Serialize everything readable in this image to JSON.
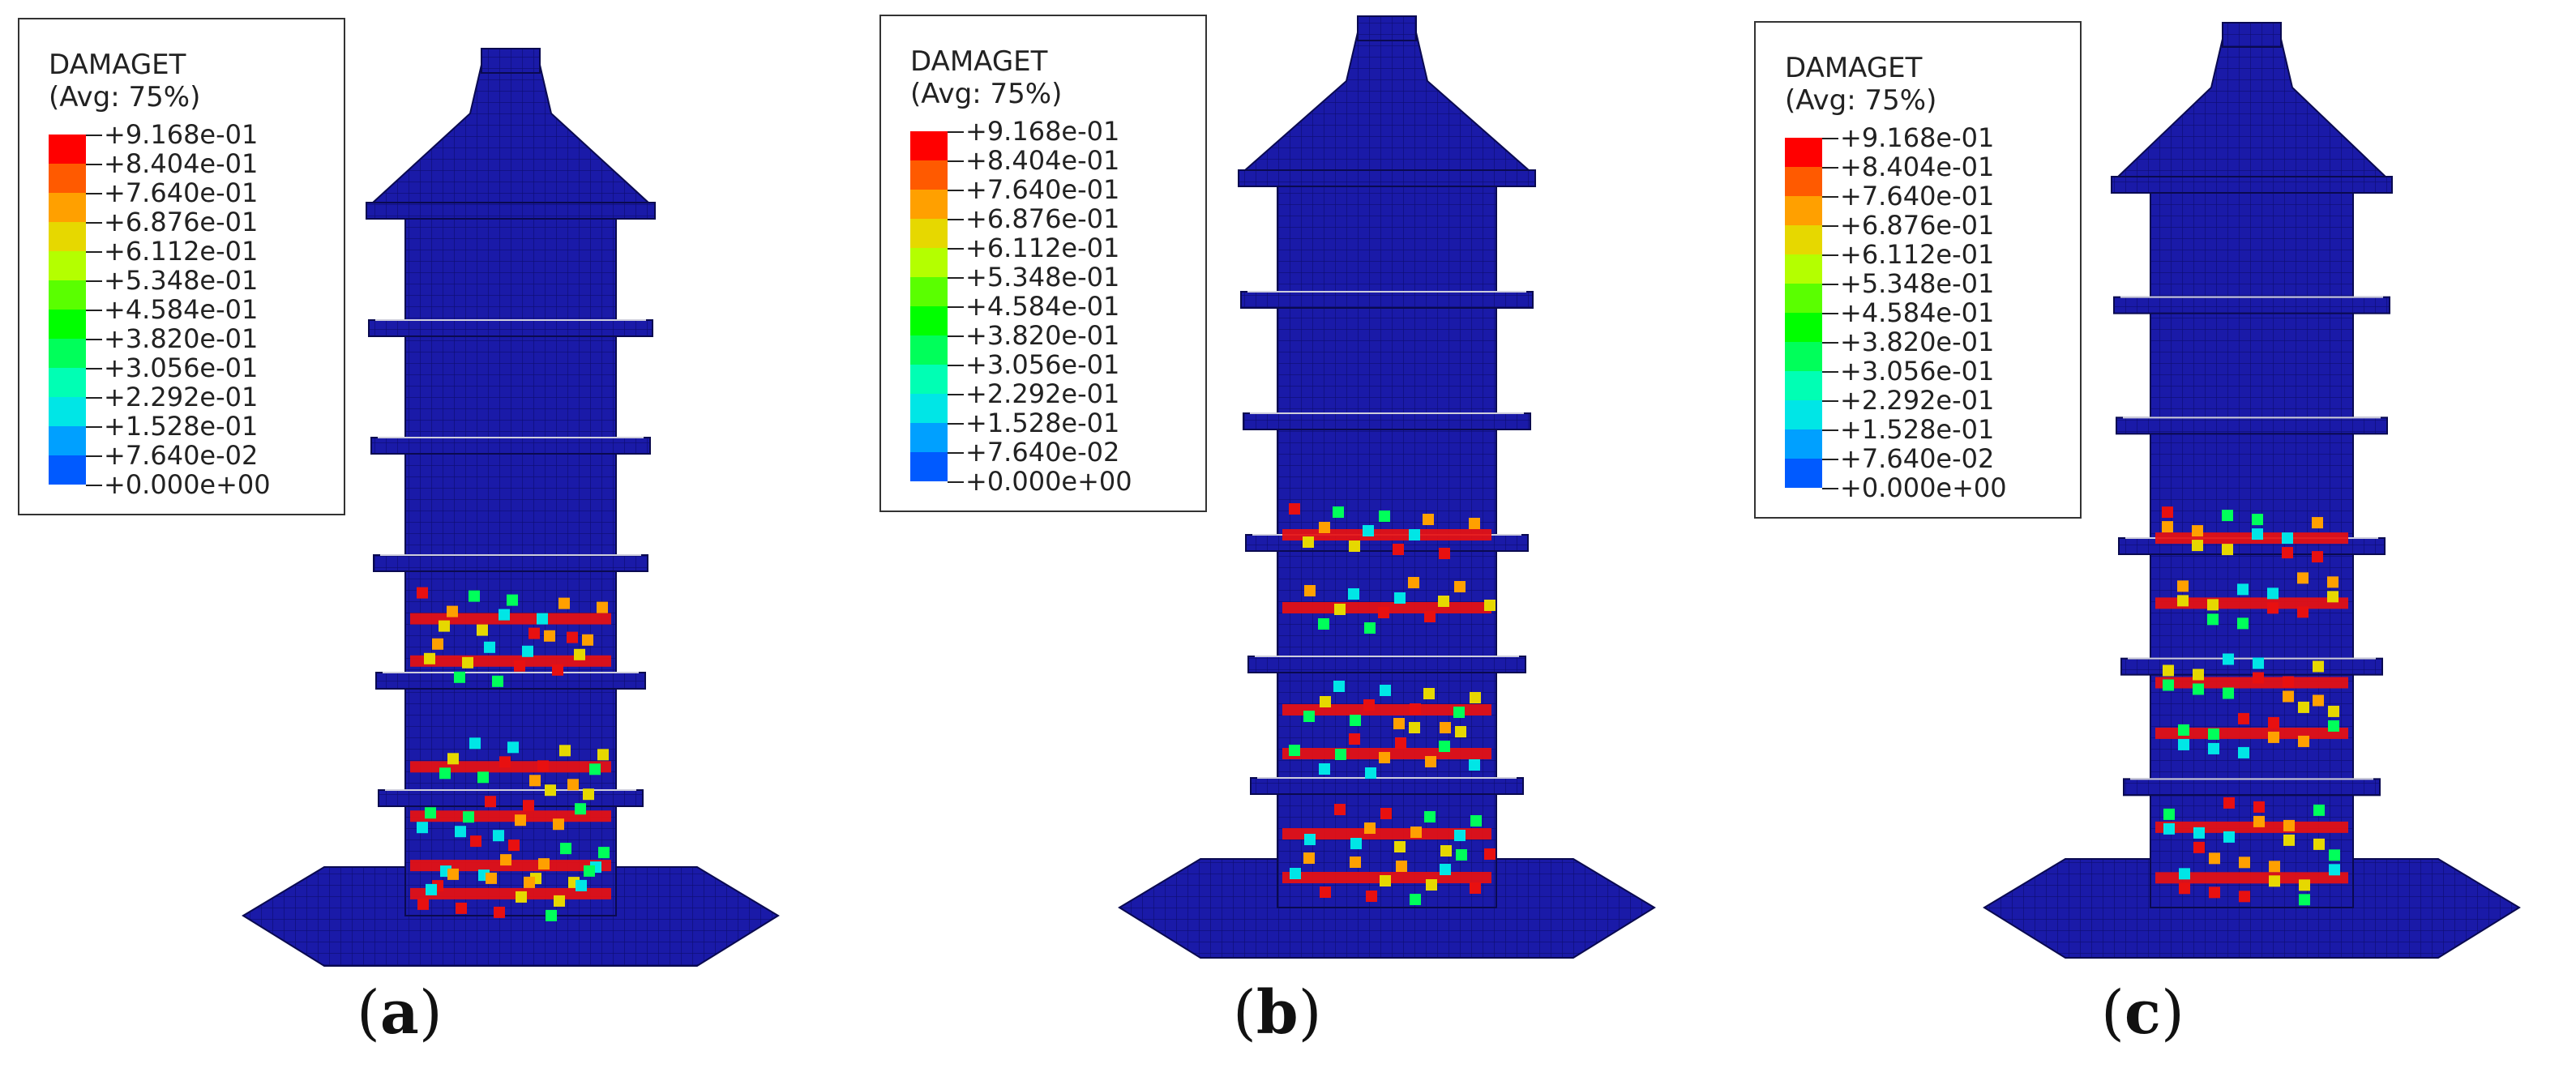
{
  "legend": {
    "title": "DAMAGET",
    "avg": "(Avg: 75%)",
    "levels": [
      {
        "label": "+9.168e-01",
        "color": "#ff0000"
      },
      {
        "label": "+8.404e-01",
        "color": "#ff5a00"
      },
      {
        "label": "+7.640e-01",
        "color": "#ffa000"
      },
      {
        "label": "+6.876e-01",
        "color": "#e6d800"
      },
      {
        "label": "+6.112e-01",
        "color": "#b4ff00"
      },
      {
        "label": "+5.348e-01",
        "color": "#5aff00"
      },
      {
        "label": "+4.584e-01",
        "color": "#00ff00"
      },
      {
        "label": "+3.820e-01",
        "color": "#00ff5a"
      },
      {
        "label": "+3.056e-01",
        "color": "#00ffb4"
      },
      {
        "label": "+2.292e-01",
        "color": "#00e6e6"
      },
      {
        "label": "+1.528e-01",
        "color": "#00a0ff"
      },
      {
        "label": "+7.640e-02",
        "color": "#005aff"
      },
      {
        "label": "+0.000e+00",
        "color": "#0000ff"
      }
    ],
    "last_label": "+0.000e+00"
  },
  "panels": [
    {
      "caption_open": "(",
      "caption_letter": "a",
      "caption_close": ")",
      "damage_bands": [
        0.58,
        0.64,
        0.79,
        0.86,
        0.93,
        0.97
      ]
    },
    {
      "caption_open": "(",
      "caption_letter": "b",
      "caption_close": ")",
      "damage_bands": [
        0.49,
        0.59,
        0.73,
        0.79,
        0.9,
        0.96
      ]
    },
    {
      "caption_open": "(",
      "caption_letter": "c",
      "caption_close": ")",
      "damage_bands": [
        0.49,
        0.58,
        0.69,
        0.76,
        0.89,
        0.96
      ]
    }
  ],
  "colors": {
    "model": "#1a1aa8",
    "mesh": "#0d0d70",
    "damage_red": "#e81010"
  }
}
